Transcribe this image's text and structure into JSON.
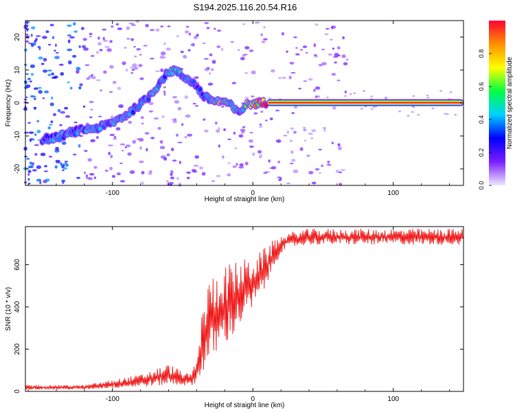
{
  "figure_title": "S194.2025.116.20.54.R16",
  "chart_data": [
    {
      "type": "heatmap",
      "title": "S194.2025.116.20.54.R16",
      "xlabel": "Height of straight line (km)",
      "ylabel": "Frequency (Hz)",
      "xlim": [
        -162,
        150
      ],
      "ylim": [
        -25,
        25
      ],
      "x_ticks": [
        -100,
        0,
        100
      ],
      "y_ticks": [
        -20,
        -10,
        0,
        10,
        20
      ],
      "colorbar": {
        "label": "Normalized spectral amplitude",
        "range": [
          0,
          1
        ],
        "ticks": [
          0.0,
          0.2,
          0.4,
          0.6,
          0.8
        ],
        "colormap": [
          "#f0e8ff",
          "#7a1fff",
          "#0000ff",
          "#00d0ff",
          "#00ff40",
          "#ffff00",
          "#ff9000",
          "#ff0033"
        ]
      },
      "ridge": {
        "x": [
          -150,
          -140,
          -130,
          -120,
          -110,
          -100,
          -90,
          -82,
          -75,
          -70,
          -65,
          -60,
          -55,
          -50,
          -45,
          -40,
          -35,
          -30,
          -25,
          -20,
          -15,
          -12,
          -10,
          -8,
          -5,
          0,
          5,
          10,
          20,
          50,
          100,
          150
        ],
        "frequency": [
          -11,
          -10.5,
          -9,
          -8,
          -7.5,
          -6,
          -3.5,
          -1,
          1.5,
          4,
          7,
          9.5,
          10,
          8,
          7,
          5,
          2,
          1,
          0.5,
          0.5,
          -1,
          -2.5,
          -3,
          -2,
          -0.5,
          -0.2,
          0,
          0.1,
          0.1,
          0.1,
          0.1,
          0.1
        ],
        "amplitude": [
          0.3,
          0.35,
          0.35,
          0.35,
          0.35,
          0.4,
          0.4,
          0.4,
          0.45,
          0.45,
          0.35,
          0.45,
          0.4,
          0.35,
          0.35,
          0.3,
          0.4,
          0.45,
          0.6,
          0.55,
          0.4,
          0.45,
          0.4,
          0.5,
          0.55,
          0.65,
          0.8,
          0.95,
          0.95,
          0.95,
          0.95,
          0.95
        ]
      }
    },
    {
      "type": "line",
      "xlabel": "Height of straight line (km)",
      "ylabel": "SNR (10 * v/v)",
      "xlim": [
        -162,
        150
      ],
      "ylim": [
        0,
        780
      ],
      "x_ticks": [
        -100,
        0,
        100
      ],
      "y_ticks": [
        0,
        200,
        400,
        600
      ],
      "color": "#ee1111",
      "envelope": {
        "x": [
          -162,
          -120,
          -100,
          -80,
          -60,
          -45,
          -40,
          -35,
          -30,
          -25,
          -20,
          -15,
          -10,
          -5,
          0,
          5,
          10,
          15,
          20,
          25,
          30,
          40,
          50,
          60,
          80,
          100,
          120,
          140,
          150
        ],
        "low": [
          5,
          5,
          8,
          10,
          12,
          15,
          20,
          30,
          60,
          100,
          150,
          190,
          240,
          300,
          340,
          400,
          470,
          560,
          640,
          660,
          670,
          680,
          680,
          680,
          680,
          680,
          680,
          680,
          680
        ],
        "high": [
          30,
          30,
          55,
          80,
          130,
          80,
          150,
          450,
          550,
          580,
          600,
          610,
          620,
          630,
          640,
          660,
          690,
          720,
          740,
          750,
          760,
          770,
          770,
          770,
          770,
          770,
          770,
          770,
          770
        ]
      }
    }
  ]
}
